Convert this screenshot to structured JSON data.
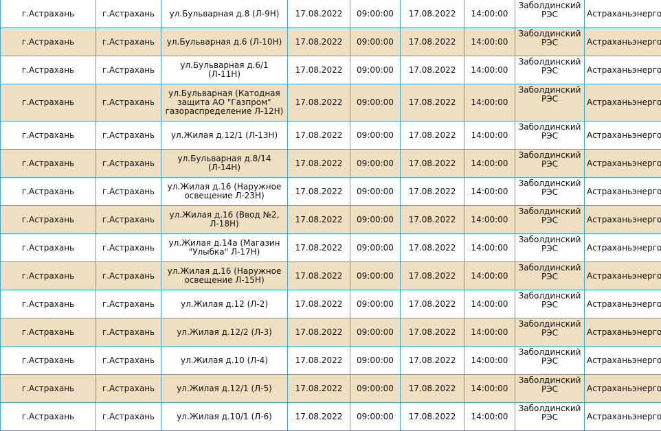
{
  "rows": [
    {
      "locality": "г.Астрахань",
      "settlement": "г.Астрахань",
      "address": "ул.Бульварная д.8 (Л-9Н)",
      "start_date": "17.08.2022",
      "start_time": "09:00:00",
      "end_date": "17.08.2022",
      "end_time": "14:00:00",
      "res": "Заболдинский РЭС",
      "company": "Астраханьэнерго"
    },
    {
      "locality": "г.Астрахань",
      "settlement": "г.Астрахань",
      "address": "ул.Бульварная д.6 (Л-10Н)",
      "start_date": "17.08.2022",
      "start_time": "09:00:00",
      "end_date": "17.08.2022",
      "end_time": "14:00:00",
      "res": "Заболдинский РЭС",
      "company": "Астраханьэнерго"
    },
    {
      "locality": "г.Астрахань",
      "settlement": "г.Астрахань",
      "address": "ул.Бульварная д.6/1 (Л-11Н)",
      "start_date": "17.08.2022",
      "start_time": "09:00:00",
      "end_date": "17.08.2022",
      "end_time": "14:00:00",
      "res": "Заболдинский РЭС",
      "company": "Астраханьэнерго"
    },
    {
      "locality": "г.Астрахань",
      "settlement": "г.Астрахань",
      "address": "ул.Бульварная (Катодная защита АО \"Газпром\" газораспределение Л-12Н)",
      "start_date": "17.08.2022",
      "start_time": "09:00:00",
      "end_date": "17.08.2022",
      "end_time": "14:00:00",
      "res": "Заболдинский РЭС",
      "company": "Астраханьэнерго"
    },
    {
      "locality": "г.Астрахань",
      "settlement": "г.Астрахань",
      "address": "ул.Жилая д.12/1 (Л-13Н)",
      "start_date": "17.08.2022",
      "start_time": "09:00:00",
      "end_date": "17.08.2022",
      "end_time": "14:00:00",
      "res": "Заболдинский РЭС",
      "company": "Астраханьэнерго"
    },
    {
      "locality": "г.Астрахань",
      "settlement": "г.Астрахань",
      "address": "ул.Бульварная д.8/14 (Л-14Н)",
      "start_date": "17.08.2022",
      "start_time": "09:00:00",
      "end_date": "17.08.2022",
      "end_time": "14:00:00",
      "res": "Заболдинский РЭС",
      "company": "Астраханьэнерго"
    },
    {
      "locality": "г.Астрахань",
      "settlement": "г.Астрахань",
      "address": "ул.Жилая д.16 (Наружное освещение Л-23Н)",
      "start_date": "17.08.2022",
      "start_time": "09:00:00",
      "end_date": "17.08.2022",
      "end_time": "14:00:00",
      "res": "Заболдинский РЭС",
      "company": "Астраханьэнерго"
    },
    {
      "locality": "г.Астрахань",
      "settlement": "г.Астрахань",
      "address": "ул.Жилая д.16 (Ввод №2, Л-18Н)",
      "start_date": "17.08.2022",
      "start_time": "09:00:00",
      "end_date": "17.08.2022",
      "end_time": "14:00:00",
      "res": "Заболдинский РЭС",
      "company": "Астраханьэнерго"
    },
    {
      "locality": "г.Астрахань",
      "settlement": "г.Астрахань",
      "address": "ул.Жилая д.14а (Магазин \"Улыбка\" Л-17Н)",
      "start_date": "17.08.2022",
      "start_time": "09:00:00",
      "end_date": "17.08.2022",
      "end_time": "14:00:00",
      "res": "Заболдинский РЭС",
      "company": "Астраханьэнерго"
    },
    {
      "locality": "г.Астрахань",
      "settlement": "г.Астрахань",
      "address": "ул.Жилая д.16 (Наружное освещение Л-15Н)",
      "start_date": "17.08.2022",
      "start_time": "09:00:00",
      "end_date": "17.08.2022",
      "end_time": "14:00:00",
      "res": "Заболдинский РЭС",
      "company": "Астраханьэнерго"
    },
    {
      "locality": "г.Астрахань",
      "settlement": "г.Астрахань",
      "address": "ул.Жилая д.12 (Л-2)",
      "start_date": "17.08.2022",
      "start_time": "09:00:00",
      "end_date": "17.08.2022",
      "end_time": "14:00:00",
      "res": "Заболдинский РЭС",
      "company": "Астраханьэнерго"
    },
    {
      "locality": "г.Астрахань",
      "settlement": "г.Астрахань",
      "address": "ул.Жилая д.12/2 (Л-3)",
      "start_date": "17.08.2022",
      "start_time": "09:00:00",
      "end_date": "17.08.2022",
      "end_time": "14:00:00",
      "res": "Заболдинский РЭС",
      "company": "Астраханьэнерго"
    },
    {
      "locality": "г.Астрахань",
      "settlement": "г.Астрахань",
      "address": "ул.Жилая д.10 (Л-4)",
      "start_date": "17.08.2022",
      "start_time": "09:00:00",
      "end_date": "17.08.2022",
      "end_time": "14:00:00",
      "res": "Заболдинский РЭС",
      "company": "Астраханьэнерго"
    },
    {
      "locality": "г.Астрахань",
      "settlement": "г.Астрахань",
      "address": "ул.Жилая д.12/1 (Л-5)",
      "start_date": "17.08.2022",
      "start_time": "09:00:00",
      "end_date": "17.08.2022",
      "end_time": "14:00:00",
      "res": "Заболдинский РЭС",
      "company": "Астраханьэнерго"
    },
    {
      "locality": "г.Астрахань",
      "settlement": "г.Астрахань",
      "address": "ул.Жилая д.10/1 (Л-6)",
      "start_date": "17.08.2022",
      "start_time": "09:00:00",
      "end_date": "17.08.2022",
      "end_time": "14:00:00",
      "res": "Заболдинский РЭС",
      "company": "Астраханьэнерго"
    }
  ],
  "colors": {
    "border": "#3aa6d6",
    "row_even": "#ffffff",
    "row_odd": "#eedfc0",
    "text": "#111111"
  }
}
